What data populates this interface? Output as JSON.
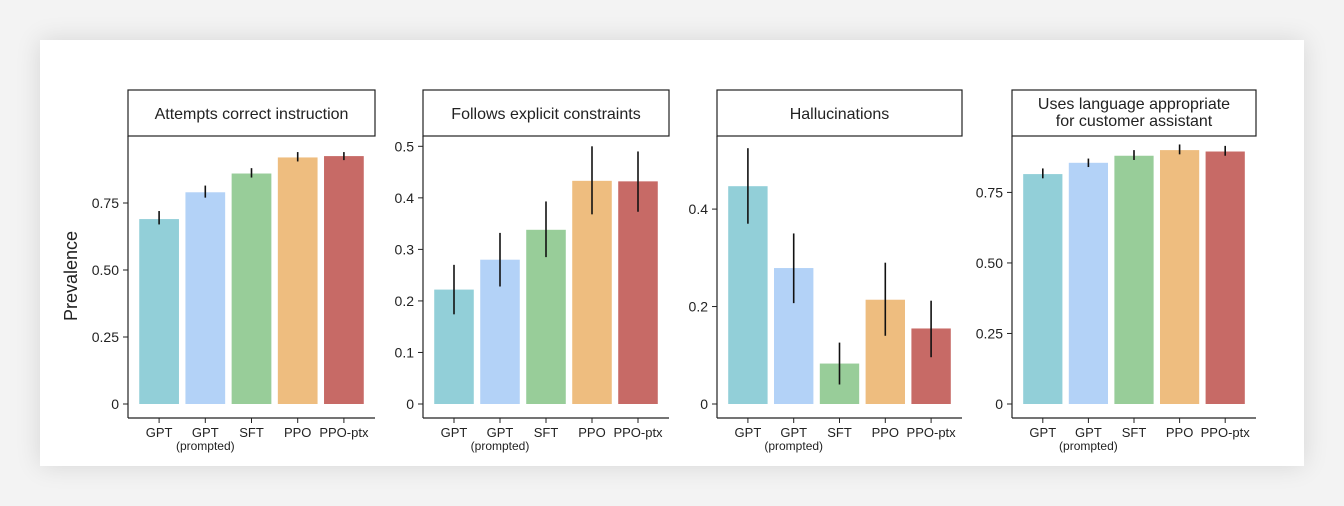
{
  "ylabel": "Prevalence",
  "colors": [
    "#92cfd8",
    "#b3d2f7",
    "#98cd99",
    "#eebd7f",
    "#c76a66"
  ],
  "chart_data": [
    {
      "type": "bar",
      "title": "Attempts correct instruction",
      "categories": [
        "GPT",
        "GPT\n(prompted)",
        "SFT",
        "PPO",
        "PPO-ptx"
      ],
      "values": [
        0.69,
        0.79,
        0.86,
        0.92,
        0.925
      ],
      "err_low": [
        0.67,
        0.77,
        0.845,
        0.905,
        0.91
      ],
      "err_high": [
        0.72,
        0.815,
        0.88,
        0.94,
        0.94
      ],
      "ylim": [
        0,
        1.0
      ],
      "yticks": [
        0,
        0.25,
        0.5,
        0.75
      ],
      "ytick_labels": [
        "0",
        "0.25",
        "0.50",
        "0.75"
      ]
    },
    {
      "type": "bar",
      "title": "Follows explicit constraints",
      "categories": [
        "GPT",
        "GPT\n(prompted)",
        "SFT",
        "PPO",
        "PPO-ptx"
      ],
      "values": [
        0.222,
        0.28,
        0.338,
        0.433,
        0.432
      ],
      "err_low": [
        0.174,
        0.228,
        0.285,
        0.368,
        0.373
      ],
      "err_high": [
        0.27,
        0.332,
        0.393,
        0.5,
        0.49
      ],
      "ylim": [
        0,
        0.52
      ],
      "yticks": [
        0,
        0.1,
        0.2,
        0.3,
        0.4,
        0.5
      ],
      "ytick_labels": [
        "0",
        "0.1",
        "0.2",
        "0.3",
        "0.4",
        "0.5"
      ]
    },
    {
      "type": "bar",
      "title": "Hallucinations",
      "categories": [
        "GPT",
        "GPT\n(prompted)",
        "SFT",
        "PPO",
        "PPO-ptx"
      ],
      "values": [
        0.447,
        0.279,
        0.083,
        0.214,
        0.155
      ],
      "err_low": [
        0.37,
        0.207,
        0.04,
        0.14,
        0.096
      ],
      "err_high": [
        0.525,
        0.35,
        0.126,
        0.29,
        0.212
      ],
      "ylim": [
        0,
        0.55
      ],
      "yticks": [
        0,
        0.2,
        0.4
      ],
      "ytick_labels": [
        "0",
        "0.2",
        "0.4"
      ]
    },
    {
      "type": "bar",
      "title": "Uses language appropriate\nfor customer assistant",
      "categories": [
        "GPT",
        "GPT\n(prompted)",
        "SFT",
        "PPO",
        "PPO-ptx"
      ],
      "values": [
        0.815,
        0.855,
        0.88,
        0.9,
        0.895
      ],
      "err_low": [
        0.8,
        0.84,
        0.865,
        0.885,
        0.88
      ],
      "err_high": [
        0.835,
        0.87,
        0.9,
        0.92,
        0.915
      ],
      "ylim": [
        0,
        0.95
      ],
      "yticks": [
        0,
        0.25,
        0.5,
        0.75
      ],
      "ytick_labels": [
        "0",
        "0.25",
        "0.50",
        "0.75"
      ]
    }
  ]
}
